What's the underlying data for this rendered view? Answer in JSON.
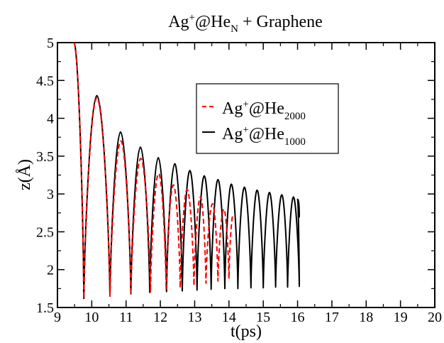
{
  "chart_data": {
    "type": "line",
    "title_parts": {
      "base1": "Ag",
      "sup1": "+",
      "base2": "@He",
      "sub1": "N",
      "tail": " + Graphene"
    },
    "xlabel": "t(ps)",
    "ylabel_parts": {
      "main": "z(",
      "unit": "Å",
      "close": ")"
    },
    "xlim": [
      9,
      20
    ],
    "ylim": [
      1.5,
      5
    ],
    "xticks": [
      9,
      10,
      11,
      12,
      13,
      14,
      15,
      16,
      17,
      18,
      19,
      20
    ],
    "yticks": [
      1.5,
      2,
      2.5,
      3,
      3.5,
      4,
      4.5,
      5
    ],
    "ytick_labels": [
      "1.5",
      "2",
      "2.5",
      "3",
      "3.5",
      "4",
      "4.5",
      "5"
    ],
    "legend_position": "upper-center",
    "series": [
      {
        "key": "he2000",
        "legend": {
          "base": "Ag",
          "sup": "+",
          "mid": "@He",
          "sub": "2000"
        },
        "color": "#ff0000",
        "dash": "dashed",
        "start": [
          9.48,
          5.0
        ],
        "minima": [
          [
            9.77,
            1.62
          ],
          [
            10.53,
            1.65
          ],
          [
            11.14,
            1.67
          ],
          [
            11.71,
            1.7
          ],
          [
            12.17,
            1.73
          ],
          [
            12.58,
            1.76
          ],
          [
            12.98,
            1.79
          ],
          [
            13.33,
            1.82
          ],
          [
            13.68,
            1.85
          ],
          [
            14.0,
            1.88
          ]
        ],
        "maxima": [
          [
            10.15,
            4.27
          ],
          [
            10.85,
            3.7
          ],
          [
            11.43,
            3.47
          ],
          [
            11.95,
            3.27
          ],
          [
            12.38,
            3.12
          ],
          [
            12.78,
            3.06
          ],
          [
            13.17,
            2.96
          ],
          [
            13.52,
            2.87
          ],
          [
            13.85,
            2.8
          ],
          [
            14.12,
            2.72
          ]
        ],
        "end": [
          14.12,
          2.72
        ]
      },
      {
        "key": "he1000",
        "legend": {
          "base": "Ag",
          "sup": "+",
          "mid": "@He",
          "sub": "1000"
        },
        "color": "#000000",
        "dash": "solid",
        "start": [
          9.48,
          5.0
        ],
        "minima": [
          [
            9.77,
            1.62
          ],
          [
            10.53,
            1.65
          ],
          [
            11.14,
            1.68
          ],
          [
            11.69,
            1.7
          ],
          [
            12.18,
            1.71
          ],
          [
            12.64,
            1.72
          ],
          [
            13.07,
            1.73
          ],
          [
            13.48,
            1.74
          ],
          [
            13.88,
            1.75
          ],
          [
            14.26,
            1.75
          ],
          [
            14.64,
            1.76
          ],
          [
            15.0,
            1.76
          ],
          [
            15.36,
            1.77
          ],
          [
            15.71,
            1.77
          ],
          [
            16.05,
            1.78
          ]
        ],
        "maxima": [
          [
            10.15,
            4.3
          ],
          [
            10.84,
            3.82
          ],
          [
            11.42,
            3.62
          ],
          [
            11.94,
            3.48
          ],
          [
            12.42,
            3.4
          ],
          [
            12.86,
            3.31
          ],
          [
            13.28,
            3.24
          ],
          [
            13.68,
            3.19
          ],
          [
            14.07,
            3.13
          ],
          [
            14.45,
            3.09
          ],
          [
            14.82,
            3.05
          ],
          [
            15.18,
            3.02
          ],
          [
            15.54,
            2.99
          ],
          [
            15.88,
            2.96
          ],
          [
            16.0,
            2.93
          ]
        ],
        "end": [
          16.05,
          2.69
        ]
      }
    ]
  }
}
